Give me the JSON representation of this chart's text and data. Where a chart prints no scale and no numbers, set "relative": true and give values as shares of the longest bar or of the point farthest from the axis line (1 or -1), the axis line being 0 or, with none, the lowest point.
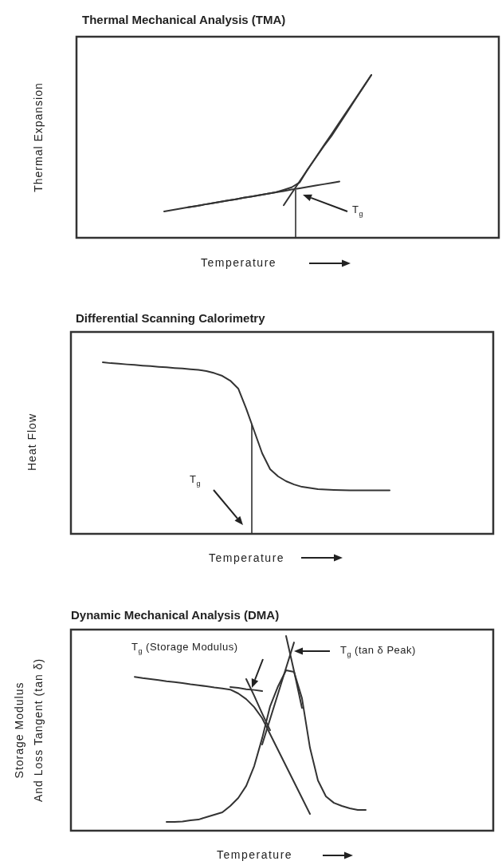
{
  "chart_data": [
    {
      "type": "line",
      "title": "Thermal Mechanical Analysis (TMA)",
      "xlabel": "Temperature",
      "ylabel": "Thermal Expansion",
      "relative": true,
      "marker": "none",
      "annotations": [
        "T$_{g}$"
      ],
      "categories": [
        null,
        null,
        null,
        null,
        null,
        null,
        null,
        null,
        null,
        null,
        null,
        null,
        null,
        null,
        null,
        null,
        null,
        null,
        null,
        null,
        null,
        null,
        null,
        null,
        null,
        null,
        null,
        null,
        null,
        null,
        null,
        null,
        null,
        null,
        null,
        null,
        null,
        null,
        null,
        null,
        null,
        null,
        null,
        null,
        null,
        null,
        null,
        null,
        null,
        null,
        null,
        null,
        null,
        null
      ],
      "series": [
        {
          "color": "#333333",
          "values": [
            null,
            null,
            null,
            null,
            null,
            null,
            null,
            null,
            null,
            null,
            null,
            0.162,
            0.17,
            0.179,
            0.187,
            0.195,
            0.204,
            0.212,
            0.221,
            0.229,
            0.237,
            0.246,
            0.254,
            0.262,
            0.271,
            0.279,
            0.287,
            0.296,
            0.304,
            0.312,
            0.321,
            0.329,
            0.337,
            0.346,
            null,
            null,
            null,
            null,
            null,
            null,
            null,
            null,
            null,
            null,
            null,
            null,
            null,
            null,
            null,
            null,
            null,
            null,
            null,
            null
          ]
        },
        {
          "color": "#333333",
          "values": [
            null,
            null,
            null,
            null,
            null,
            null,
            null,
            null,
            null,
            null,
            null,
            null,
            null,
            null,
            null,
            null,
            null,
            null,
            null,
            null,
            null,
            null,
            null,
            null,
            null,
            null,
            0.2,
            0.273,
            0.346,
            0.418,
            0.491,
            0.564,
            0.636,
            0.709,
            0.782,
            0.854,
            0.927,
            1.0,
            null,
            null,
            null,
            null,
            null,
            null,
            null,
            null,
            null,
            null,
            null,
            null,
            null,
            null,
            null,
            null
          ]
        },
        {
          "color": "#333333",
          "values": [
            null,
            null,
            null,
            null,
            null,
            null,
            null,
            null,
            null,
            null,
            null,
            null,
            null,
            null,
            0.187,
            0.195,
            0.204,
            0.212,
            0.221,
            0.229,
            0.237,
            0.246,
            0.254,
            0.262,
            0.271,
            0.279,
            0.294,
            0.31,
            0.34,
            0.42,
            0.49,
            0.56,
            0.625,
            0.7,
            0.775,
            0.85,
            0.925,
            1.0,
            null,
            null,
            null,
            null,
            null,
            null,
            null,
            null,
            null,
            null,
            null,
            null,
            null,
            null,
            null,
            null
          ]
        }
      ]
    },
    {
      "type": "line",
      "title": "Differential Scanning Calorimetry",
      "xlabel": "Temperature",
      "ylabel": "Heat Flow",
      "relative": true,
      "marker": "none",
      "annotations": [
        "T$_{g}$"
      ],
      "categories": [
        null,
        null,
        null,
        null,
        null,
        null,
        null,
        null,
        null,
        null,
        null,
        null,
        null,
        null,
        null,
        null,
        null,
        null,
        null,
        null,
        null,
        null,
        null,
        null,
        null,
        null,
        null,
        null,
        null,
        null,
        null,
        null,
        null,
        null,
        null,
        null,
        null,
        null,
        null,
        null,
        null,
        null,
        null,
        null,
        null,
        null,
        null,
        null,
        null,
        null,
        null,
        null,
        null,
        null
      ],
      "series": [
        {
          "color": "#333333",
          "values": [
            null,
            null,
            null,
            null,
            1.0,
            0.995,
            0.992,
            0.988,
            0.985,
            0.981,
            0.978,
            0.974,
            0.971,
            0.967,
            0.964,
            0.96,
            0.956,
            0.949,
            0.937,
            0.921,
            0.893,
            0.847,
            0.73,
            0.6,
            0.47,
            0.377,
            0.335,
            0.307,
            0.288,
            0.274,
            0.267,
            0.26,
            0.258,
            0.256,
            0.255,
            0.254,
            0.253,
            0.253,
            0.253,
            0.253,
            0.253,
            null,
            null,
            null,
            null,
            null,
            null,
            null,
            null,
            null,
            null,
            null,
            null,
            null
          ]
        }
      ]
    },
    {
      "type": "line",
      "title": "Dynamic Mechanical Analysis (DMA)",
      "xlabel": "Temperature",
      "ylabel": "Storage Modulus\nAnd Loss Tangent (tan δ)",
      "relative": true,
      "marker": "none",
      "annotations": [
        "T$_{g}$ (Storage Modulus)",
        "T$_{g}$ (tan δ Peak)"
      ],
      "categories": [
        null,
        null,
        null,
        null,
        null,
        null,
        null,
        null,
        null,
        null,
        null,
        null,
        null,
        null,
        null,
        null,
        null,
        null,
        null,
        null,
        null,
        null,
        null,
        null,
        null,
        null,
        null,
        null,
        null,
        null,
        null,
        null,
        null,
        null,
        null,
        null,
        null,
        null,
        null,
        null,
        null,
        null,
        null,
        null,
        null,
        null,
        null,
        null,
        null,
        null,
        null,
        null,
        null,
        null
      ],
      "series": [
        {
          "color": "#333333",
          "values": [
            null,
            null,
            null,
            null,
            null,
            null,
            null,
            null,
            0.79,
            0.784,
            0.779,
            0.774,
            0.768,
            0.763,
            0.758,
            0.752,
            0.747,
            0.742,
            0.736,
            0.731,
            0.725,
            0.705,
            0.676,
            0.635,
            0.578,
            0.496,
            0.414,
            0.332,
            0.25,
            0.168,
            0.086,
            null,
            null,
            null,
            null,
            null,
            null,
            null,
            null,
            null,
            null,
            null,
            null,
            null,
            null,
            null,
            null,
            null,
            null,
            null,
            null,
            null,
            null,
            null
          ]
        },
        {
          "color": "#333333",
          "values": [
            null,
            null,
            null,
            null,
            null,
            null,
            null,
            null,
            null,
            null,
            null,
            null,
            null,
            null,
            null,
            null,
            null,
            null,
            null,
            null,
            0.738,
            0.734,
            0.727,
            0.723,
            0.717,
            null,
            null,
            null,
            null,
            null,
            null,
            null,
            null,
            null,
            null,
            null,
            null,
            null,
            null,
            null,
            null,
            null,
            null,
            null,
            null,
            null,
            null,
            null,
            null,
            null,
            null,
            null,
            null,
            null
          ]
        },
        {
          "color": "#333333",
          "values": [
            null,
            null,
            null,
            null,
            null,
            null,
            null,
            null,
            null,
            null,
            null,
            null,
            null,
            null,
            null,
            null,
            null,
            null,
            null,
            null,
            null,
            null,
            0.779,
            0.693,
            0.602,
            0.516,
            null,
            null,
            null,
            null,
            null,
            null,
            null,
            null,
            null,
            null,
            null,
            null,
            null,
            null,
            null,
            null,
            null,
            null,
            null,
            null,
            null,
            null,
            null,
            null,
            null,
            null,
            null,
            null
          ]
        },
        {
          "color": "#333333",
          "values": [
            null,
            null,
            null,
            null,
            null,
            null,
            null,
            null,
            null,
            null,
            null,
            null,
            0.045,
            0.045,
            0.047,
            0.053,
            0.057,
            0.07,
            0.082,
            0.094,
            0.127,
            0.168,
            0.23,
            0.332,
            0.475,
            0.639,
            0.742,
            0.824,
            0.816,
            0.68,
            0.426,
            0.258,
            0.176,
            0.143,
            0.127,
            0.115,
            0.107,
            0.107,
            null,
            null,
            null,
            null,
            null,
            null,
            null,
            null,
            null,
            null,
            null,
            null,
            null,
            null,
            null,
            null
          ]
        },
        {
          "color": "#333333",
          "values": [
            null,
            null,
            null,
            null,
            null,
            null,
            null,
            null,
            null,
            null,
            null,
            null,
            null,
            null,
            null,
            null,
            null,
            null,
            null,
            null,
            null,
            null,
            null,
            null,
            0.443,
            0.574,
            0.705,
            0.836,
            0.967,
            null,
            null,
            null,
            null,
            null,
            null,
            null,
            null,
            null,
            null,
            null,
            null,
            null,
            null,
            null,
            null,
            null,
            null,
            null,
            null,
            null,
            null,
            null,
            null,
            null
          ]
        },
        {
          "color": "#333333",
          "values": [
            null,
            null,
            null,
            null,
            null,
            null,
            null,
            null,
            null,
            null,
            null,
            null,
            null,
            null,
            null,
            null,
            null,
            null,
            null,
            null,
            null,
            null,
            null,
            null,
            null,
            null,
            null,
            1.0,
            0.82,
            0.63,
            null,
            null,
            null,
            null,
            null,
            null,
            null,
            null,
            null,
            null,
            null,
            null,
            null,
            null,
            null,
            null,
            null,
            null,
            null,
            null,
            null,
            null,
            null,
            null
          ]
        }
      ]
    }
  ]
}
